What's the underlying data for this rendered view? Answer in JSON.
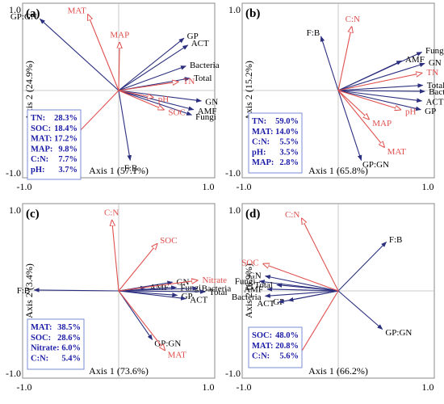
{
  "colors": {
    "species": "#2b2f7e",
    "env": "#e0504e",
    "stats": "#1a1aa6",
    "frame": "#888888"
  },
  "chart_data": [
    {
      "type": "scatter",
      "panel": "(a)",
      "xlabel": "Axis 1 (57.1%)",
      "ylabel": "Axis 2 (24.9%)",
      "xlim": [
        -1.0,
        1.0
      ],
      "ylim": [
        -1.0,
        1.0
      ],
      "ticks": {
        "xmin": "-1.0",
        "xmax": "1.0",
        "ymin": "-1.0",
        "ymax": "1.0"
      },
      "species": [
        {
          "label": "GP:GN",
          "x": -0.82,
          "y": 0.82
        },
        {
          "label": "GP",
          "x": 0.68,
          "y": 0.6
        },
        {
          "label": "ACT",
          "x": 0.72,
          "y": 0.52
        },
        {
          "label": "Bacteria",
          "x": 0.7,
          "y": 0.28
        },
        {
          "label": "Total",
          "x": 0.74,
          "y": 0.14
        },
        {
          "label": "GN",
          "x": 0.86,
          "y": -0.12
        },
        {
          "label": "AMF",
          "x": 0.78,
          "y": -0.22
        },
        {
          "label": "Fungi",
          "x": 0.76,
          "y": -0.28
        },
        {
          "label": "F:B",
          "x": 0.12,
          "y": -0.8
        }
      ],
      "env": [
        {
          "label": "MAT",
          "x": -0.32,
          "y": 0.87
        },
        {
          "label": "MAP",
          "x": 0.01,
          "y": 0.55
        },
        {
          "label": "TN",
          "x": 0.62,
          "y": 0.1
        },
        {
          "label": "pH",
          "x": 0.36,
          "y": -0.08
        },
        {
          "label": "SOC",
          "x": 0.47,
          "y": -0.22
        },
        {
          "label": "C:N",
          "x": -0.55,
          "y": -0.63
        }
      ],
      "stats": [
        {
          "name": "TN:",
          "value": "28.3%"
        },
        {
          "name": "SOC:",
          "value": "18.4%"
        },
        {
          "name": "MAT:",
          "value": "17.2%"
        },
        {
          "name": "MAP:",
          "value": "9.8%"
        },
        {
          "name": "C:N:",
          "value": "7.7%"
        },
        {
          "name": "pH:",
          "value": "3.7%"
        }
      ]
    },
    {
      "type": "scatter",
      "panel": "(b)",
      "xlabel": "Axis 1 (65.8%)",
      "ylabel": "Axis 2 (15.2%)",
      "xlim": [
        -1.0,
        1.0
      ],
      "ylim": [
        -1.0,
        1.0
      ],
      "ticks": {
        "xmin": "-1.0",
        "xmax": "1.0",
        "ymin": "-1.0",
        "ymax": "1.0"
      },
      "species": [
        {
          "label": "F:B",
          "x": -0.18,
          "y": 0.62
        },
        {
          "label": "Fungi",
          "x": 0.87,
          "y": 0.44
        },
        {
          "label": "AMF",
          "x": 0.66,
          "y": 0.34
        },
        {
          "label": "GN",
          "x": 0.9,
          "y": 0.31
        },
        {
          "label": "Total",
          "x": 0.88,
          "y": 0.06
        },
        {
          "label": "Bacteria",
          "x": 0.9,
          "y": -0.01
        },
        {
          "label": "ACT",
          "x": 0.87,
          "y": -0.12
        },
        {
          "label": "GP",
          "x": 0.86,
          "y": -0.22
        },
        {
          "label": "GP:GN",
          "x": 0.24,
          "y": -0.8
        }
      ],
      "env": [
        {
          "label": "C:N",
          "x": 0.14,
          "y": 0.73
        },
        {
          "label": "TN",
          "x": 0.87,
          "y": 0.2
        },
        {
          "label": "pH",
          "x": 0.65,
          "y": -0.22
        },
        {
          "label": "MAP",
          "x": 0.32,
          "y": -0.33
        },
        {
          "label": "MAT",
          "x": 0.48,
          "y": -0.65
        }
      ],
      "stats": [
        {
          "name": "TN:",
          "value": "59.0%"
        },
        {
          "name": "MAT:",
          "value": "14.0%"
        },
        {
          "name": "C:N:",
          "value": "5.5%"
        },
        {
          "name": "pH:",
          "value": "3.5%"
        },
        {
          "name": "MAP:",
          "value": "2.8%"
        }
      ]
    },
    {
      "type": "scatter",
      "panel": "(c)",
      "xlabel": "Axis 1 (73.6%)",
      "ylabel": "Axis 2 (3.4%)",
      "xlim": [
        -1.0,
        1.0
      ],
      "ylim": [
        -1.0,
        1.0
      ],
      "ticks": {
        "xmin": "-1.0",
        "xmax": "1.0",
        "ymin": "-1.0",
        "ymax": "1.0"
      },
      "species": [
        {
          "label": "F:B",
          "x": -0.88,
          "y": 0.01
        },
        {
          "label": "GN",
          "x": 0.56,
          "y": 0.1
        },
        {
          "label": "AMF",
          "x": 0.28,
          "y": 0.04
        },
        {
          "label": "Fungi",
          "x": 0.6,
          "y": 0.04
        },
        {
          "label": "Bacteria",
          "x": 0.82,
          "y": 0.03
        },
        {
          "label": "Total",
          "x": 0.9,
          "y": -0.01
        },
        {
          "label": "GP",
          "x": 0.61,
          "y": -0.05
        },
        {
          "label": "ACT",
          "x": 0.7,
          "y": -0.09
        },
        {
          "label": "GP:GN",
          "x": 0.35,
          "y": -0.56
        }
      ],
      "env": [
        {
          "label": "C:N",
          "x": -0.07,
          "y": 0.81
        },
        {
          "label": "SOC",
          "x": 0.4,
          "y": 0.54
        },
        {
          "label": "Nitrate",
          "x": 0.82,
          "y": 0.12
        },
        {
          "label": "MAT",
          "x": 0.48,
          "y": -0.68
        }
      ],
      "stats": [
        {
          "name": "MAT:",
          "value": "38.5%"
        },
        {
          "name": "SOC:",
          "value": "28.6%"
        },
        {
          "name": "Nitrate:",
          "value": "6.0%"
        },
        {
          "name": "C:N:",
          "value": "5.4%"
        }
      ]
    },
    {
      "type": "scatter",
      "panel": "(d)",
      "xlabel": "Axis 1 (66.2%)",
      "ylabel": "Axis 2 (6.9%)",
      "xlim": [
        -1.0,
        1.0
      ],
      "ylim": [
        -1.0,
        1.0
      ],
      "ticks": {
        "xmin": "-1.0",
        "xmax": "1.0",
        "ymin": "-1.0",
        "ymax": "1.0"
      },
      "species": [
        {
          "label": "F:B",
          "x": 0.5,
          "y": 0.56
        },
        {
          "label": "GN",
          "x": -0.76,
          "y": 0.17
        },
        {
          "label": "Fungi",
          "x": -0.82,
          "y": 0.11
        },
        {
          "label": "Total",
          "x": -0.64,
          "y": 0.07
        },
        {
          "label": "AMF",
          "x": -0.74,
          "y": 0.02
        },
        {
          "label": "Bacteria",
          "x": -0.76,
          "y": -0.06
        },
        {
          "label": "GP",
          "x": -0.52,
          "y": -0.11
        },
        {
          "label": "ACT",
          "x": -0.62,
          "y": -0.13
        },
        {
          "label": "GP:GN",
          "x": 0.46,
          "y": -0.44
        }
      ],
      "env": [
        {
          "label": "C:N",
          "x": -0.38,
          "y": 0.83
        },
        {
          "label": "SOC",
          "x": -0.78,
          "y": 0.31
        },
        {
          "label": "MAT",
          "x": -0.44,
          "y": -0.8
        }
      ],
      "stats": [
        {
          "name": "SOC:",
          "value": "48.0%"
        },
        {
          "name": "MAT:",
          "value": "20.8%"
        },
        {
          "name": "C:N:",
          "value": "5.6%"
        }
      ]
    }
  ]
}
